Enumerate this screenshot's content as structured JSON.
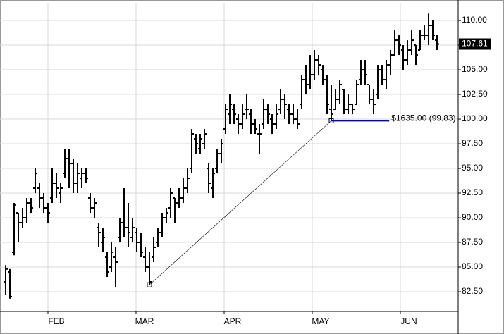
{
  "chart_data": {
    "type": "ohlc",
    "xlim": [
      -1.333,
      107
    ],
    "xticks": [
      {
        "value": 10,
        "label": "FEB"
      },
      {
        "value": 30.83,
        "label": "MAR"
      },
      {
        "value": 51.67,
        "label": "APR"
      },
      {
        "value": 72.5,
        "label": "MAY"
      },
      {
        "value": 93.33,
        "label": "JUN"
      }
    ],
    "ylim": [
      80.5,
      111.79
    ],
    "yticks": [
      {
        "value": 82.5,
        "label": "82.50"
      },
      {
        "value": 85,
        "label": "85.00"
      },
      {
        "value": 87.5,
        "label": "87.50"
      },
      {
        "value": 90,
        "label": "90.00"
      },
      {
        "value": 92.5,
        "label": "92.50"
      },
      {
        "value": 95,
        "label": "95.00"
      },
      {
        "value": 97.5,
        "label": "97.50"
      },
      {
        "value": 100,
        "label": "100.00"
      },
      {
        "value": 102.5,
        "label": "102.50"
      },
      {
        "value": 105,
        "label": "105.00"
      },
      {
        "value": 107.5,
        "label": "107.50"
      },
      {
        "value": 110,
        "label": "110.00"
      }
    ],
    "grid": true,
    "color": "#000000",
    "open": [
      83.5,
      84.5,
      86.5,
      90.5,
      89.5,
      90.0,
      91.5,
      93.0,
      93.0,
      92.0,
      91.0,
      92.0,
      93.5,
      92.5,
      94.5,
      96.0,
      95.5,
      93.5,
      94.0,
      94.5,
      92.0,
      91.0,
      89.0,
      87.5,
      86.0,
      85.0,
      86.0,
      88.0,
      89.5,
      89.0,
      88.0,
      88.5,
      87.5,
      86.0,
      85.0,
      86.0,
      87.5,
      88.5,
      90.0,
      91.0,
      92.0,
      91.5,
      92.0,
      93.0,
      95.0,
      98.0,
      97.0,
      97.5,
      95.0,
      93.0,
      95.0,
      96.5,
      99.0,
      100.5,
      101.0,
      100.0,
      99.5,
      101.0,
      100.5,
      99.5,
      98.5,
      99.5,
      101.0,
      100.0,
      99.5,
      101.0,
      102.0,
      101.0,
      100.5,
      100.0,
      101.5,
      104.0,
      103.5,
      104.5,
      106.0,
      105.0,
      104.0,
      101.0,
      101.0,
      102.0,
      103.0,
      101.0,
      101.5,
      101.5,
      104.0,
      105.0,
      103.5,
      102.0,
      102.5,
      105.0,
      104.0,
      105.5,
      106.5,
      108.0,
      107.0,
      106.0,
      107.0,
      107.5,
      107.0,
      108.5,
      108.5,
      109.5,
      108.0
    ],
    "high": [
      85.2,
      84.8,
      91.5,
      90.5,
      91.0,
      92.0,
      92.0,
      95.0,
      93.5,
      92.5,
      91.5,
      95.0,
      94.5,
      93.5,
      97.0,
      97.0,
      96.0,
      95.5,
      95.0,
      95.0,
      92.5,
      92.0,
      89.5,
      89.0,
      86.5,
      87.5,
      87.0,
      90.0,
      93.0,
      91.5,
      90.0,
      89.0,
      88.5,
      87.0,
      86.5,
      88.0,
      89.0,
      90.5,
      91.0,
      93.0,
      92.0,
      93.0,
      94.0,
      95.0,
      99.0,
      98.5,
      98.5,
      99.0,
      95.5,
      95.0,
      97.0,
      98.0,
      101.5,
      102.5,
      101.5,
      100.5,
      101.5,
      102.5,
      101.0,
      100.0,
      99.5,
      102.0,
      101.5,
      100.5,
      101.5,
      103.0,
      102.5,
      101.5,
      101.5,
      101.0,
      104.5,
      105.5,
      106.5,
      107.0,
      106.5,
      105.5,
      104.5,
      103.5,
      103.0,
      104.0,
      103.0,
      102.5,
      101.5,
      104.0,
      106.0,
      106.0,
      103.5,
      103.0,
      105.5,
      105.5,
      106.0,
      107.0,
      109.0,
      108.5,
      107.5,
      108.0,
      109.0,
      107.5,
      109.0,
      109.5,
      110.7,
      110.0,
      108.5
    ],
    "low": [
      82.2,
      81.8,
      86.2,
      87.5,
      89.0,
      89.5,
      90.5,
      92.5,
      91.0,
      90.5,
      89.5,
      91.5,
      92.0,
      91.5,
      94.0,
      93.0,
      92.5,
      92.5,
      93.0,
      93.5,
      90.5,
      90.0,
      87.0,
      86.5,
      84.0,
      84.5,
      83.0,
      87.5,
      88.0,
      87.0,
      87.5,
      86.5,
      86.0,
      84.5,
      83.2,
      85.5,
      87.0,
      88.0,
      89.5,
      90.0,
      89.5,
      91.0,
      91.5,
      92.5,
      94.5,
      96.5,
      96.5,
      97.0,
      92.5,
      92.0,
      94.5,
      95.5,
      98.5,
      99.5,
      99.5,
      98.5,
      99.0,
      100.0,
      98.5,
      98.5,
      96.5,
      99.0,
      99.5,
      98.5,
      99.0,
      100.5,
      100.0,
      99.5,
      99.5,
      99.0,
      101.0,
      102.5,
      103.0,
      104.0,
      104.5,
      103.5,
      100.5,
      99.83,
      101.0,
      101.5,
      100.5,
      100.5,
      100.5,
      101.5,
      103.5,
      103.5,
      101.5,
      100.5,
      102.0,
      103.5,
      103.0,
      104.5,
      106.5,
      106.5,
      105.0,
      105.5,
      106.5,
      105.5,
      107.0,
      108.0,
      107.5,
      108.0,
      107.0
    ],
    "close": [
      84.8,
      82.0,
      91.3,
      89.5,
      90.0,
      91.5,
      91.0,
      94.5,
      92.0,
      91.0,
      90.5,
      93.5,
      93.0,
      93.0,
      96.0,
      95.5,
      93.5,
      94.5,
      94.5,
      94.0,
      91.0,
      91.5,
      88.5,
      88.0,
      84.5,
      86.5,
      85.5,
      89.5,
      89.0,
      88.5,
      89.0,
      87.5,
      86.5,
      85.0,
      83.5,
      87.0,
      88.5,
      90.0,
      90.5,
      92.5,
      91.5,
      92.0,
      93.0,
      94.0,
      98.5,
      97.5,
      98.0,
      98.5,
      93.5,
      94.5,
      96.5,
      97.5,
      101.0,
      101.5,
      100.5,
      99.5,
      100.5,
      101.0,
      99.5,
      99.0,
      98.5,
      101.0,
      100.5,
      99.5,
      100.5,
      102.0,
      101.5,
      100.5,
      100.0,
      99.5,
      104.0,
      103.5,
      104.5,
      106.0,
      105.5,
      104.0,
      101.5,
      100.5,
      102.0,
      103.5,
      101.0,
      101.5,
      101.0,
      103.5,
      105.0,
      104.5,
      102.0,
      101.5,
      105.0,
      104.0,
      105.5,
      106.5,
      108.0,
      107.5,
      106.0,
      107.0,
      108.0,
      106.5,
      108.5,
      108.5,
      109.5,
      108.5,
      107.61
    ],
    "last_price": 107.61,
    "trendline": {
      "x": [
        34,
        77
      ],
      "y": [
        83.2,
        99.83
      ],
      "color": "#000000"
    },
    "measure": {
      "label": "$1635.00 (99.83)",
      "value": 99.83,
      "x": [
        77,
        90.7
      ],
      "color": "#0000cc"
    }
  }
}
